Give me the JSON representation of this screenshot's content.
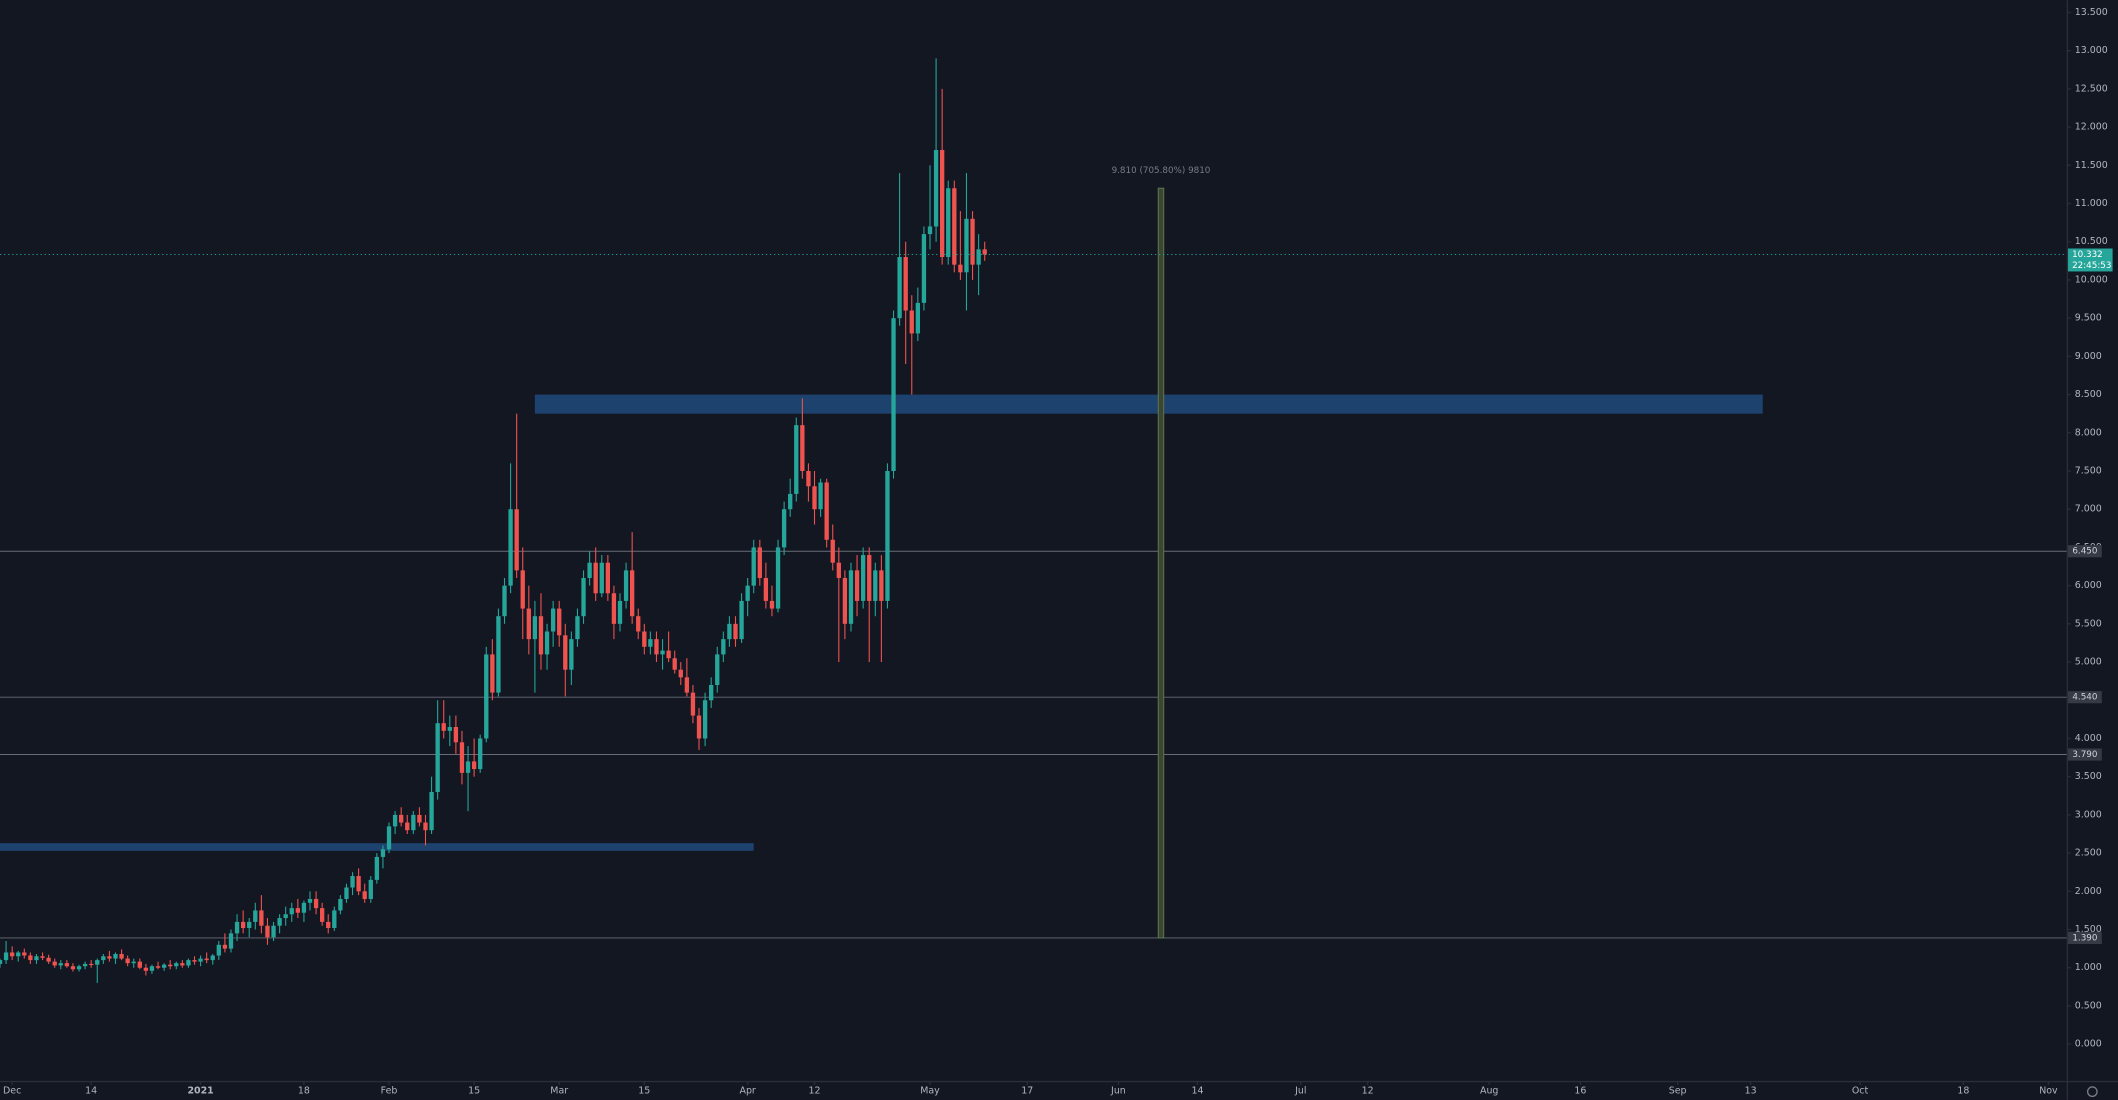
{
  "chart_data": {
    "type": "candlestick",
    "up_color": "#26a69a",
    "down_color": "#ef5350",
    "xlim": [
      "2020-11-29",
      "2021-11-04"
    ],
    "ylim": [
      -0.48,
      13.66
    ],
    "yticks": [
      {
        "value": 0,
        "label": "0.000"
      },
      {
        "value": 0.5,
        "label": "0.500"
      },
      {
        "value": 1,
        "label": "1.000"
      },
      {
        "value": 1.5,
        "label": "1.500"
      },
      {
        "value": 2,
        "label": "2.000"
      },
      {
        "value": 2.5,
        "label": "2.500"
      },
      {
        "value": 3,
        "label": "3.000"
      },
      {
        "value": 3.5,
        "label": "3.500"
      },
      {
        "value": 4,
        "label": "4.000"
      },
      {
        "value": 4.5,
        "label": "4.500"
      },
      {
        "value": 5,
        "label": "5.000"
      },
      {
        "value": 5.5,
        "label": "5.500"
      },
      {
        "value": 6,
        "label": "6.000"
      },
      {
        "value": 6.5,
        "label": "6.500"
      },
      {
        "value": 7,
        "label": "7.000"
      },
      {
        "value": 7.5,
        "label": "7.500"
      },
      {
        "value": 8,
        "label": "8.000"
      },
      {
        "value": 8.5,
        "label": "8.500"
      },
      {
        "value": 9,
        "label": "9.000"
      },
      {
        "value": 9.5,
        "label": "9.500"
      },
      {
        "value": 10,
        "label": "10.000"
      },
      {
        "value": 10.5,
        "label": "10.500"
      },
      {
        "value": 11,
        "label": "11.000"
      },
      {
        "value": 11.5,
        "label": "11.500"
      },
      {
        "value": 12,
        "label": "12.000"
      },
      {
        "value": 12.5,
        "label": "12.500"
      },
      {
        "value": 13,
        "label": "13.000"
      },
      {
        "value": 13.5,
        "label": "13.500"
      }
    ],
    "xticks": [
      {
        "value": "2020-12-01",
        "label": "Dec"
      },
      {
        "value": "2020-12-14",
        "label": "14"
      },
      {
        "value": "2021-01-01",
        "label": "2021"
      },
      {
        "value": "2021-01-18",
        "label": "18"
      },
      {
        "value": "2021-02-01",
        "label": "Feb"
      },
      {
        "value": "2021-02-15",
        "label": "15"
      },
      {
        "value": "2021-03-01",
        "label": "Mar"
      },
      {
        "value": "2021-03-15",
        "label": "15"
      },
      {
        "value": "2021-04-01",
        "label": "Apr"
      },
      {
        "value": "2021-04-12",
        "label": "12"
      },
      {
        "value": "2021-05-01",
        "label": "May"
      },
      {
        "value": "2021-05-17",
        "label": "17"
      },
      {
        "value": "2021-06-01",
        "label": "Jun"
      },
      {
        "value": "2021-06-14",
        "label": "14"
      },
      {
        "value": "2021-07-01",
        "label": "Jul"
      },
      {
        "value": "2021-07-12",
        "label": "12"
      },
      {
        "value": "2021-08-01",
        "label": "Aug"
      },
      {
        "value": "2021-08-16",
        "label": "16"
      },
      {
        "value": "2021-09-01",
        "label": "Sep"
      },
      {
        "value": "2021-09-13",
        "label": "13"
      },
      {
        "value": "2021-10-01",
        "label": "Oct"
      },
      {
        "value": "2021-10-18",
        "label": "18"
      },
      {
        "value": "2021-11-01",
        "label": "Nov"
      }
    ],
    "levels": [
      {
        "value": 6.45,
        "label": "6.450"
      },
      {
        "value": 4.54,
        "label": "4.540"
      },
      {
        "value": 3.79,
        "label": "3.790"
      },
      {
        "value": 1.39,
        "label": "1.390"
      }
    ],
    "current_price": {
      "value": 10.332,
      "label": "10.332",
      "timer": "22:45:53"
    },
    "zones": [
      {
        "from": "2021-02-25",
        "to": "2021-09-15",
        "low": 8.25,
        "high": 8.5
      },
      {
        "from": "2020-11-29",
        "to": "2021-04-02",
        "low": 2.53,
        "high": 2.63
      }
    ],
    "measure": {
      "label": "9.810 (705.80%) 9810",
      "date": "2021-06-08",
      "from": 1.39,
      "to": 11.2
    },
    "x": [
      "2020-11-29",
      "2020-11-30",
      "2020-12-01",
      "2020-12-02",
      "2020-12-03",
      "2020-12-04",
      "2020-12-05",
      "2020-12-06",
      "2020-12-07",
      "2020-12-08",
      "2020-12-09",
      "2020-12-10",
      "2020-12-11",
      "2020-12-12",
      "2020-12-13",
      "2020-12-14",
      "2020-12-15",
      "2020-12-16",
      "2020-12-17",
      "2020-12-18",
      "2020-12-19",
      "2020-12-20",
      "2020-12-21",
      "2020-12-22",
      "2020-12-23",
      "2020-12-24",
      "2020-12-25",
      "2020-12-26",
      "2020-12-27",
      "2020-12-28",
      "2020-12-29",
      "2020-12-30",
      "2020-12-31",
      "2021-01-01",
      "2021-01-02",
      "2021-01-03",
      "2021-01-04",
      "2021-01-05",
      "2021-01-06",
      "2021-01-07",
      "2021-01-08",
      "2021-01-09",
      "2021-01-10",
      "2021-01-11",
      "2021-01-12",
      "2021-01-13",
      "2021-01-14",
      "2021-01-15",
      "2021-01-16",
      "2021-01-17",
      "2021-01-18",
      "2021-01-19",
      "2021-01-20",
      "2021-01-21",
      "2021-01-22",
      "2021-01-23",
      "2021-01-24",
      "2021-01-25",
      "2021-01-26",
      "2021-01-27",
      "2021-01-28",
      "2021-01-29",
      "2021-01-30",
      "2021-01-31",
      "2021-02-01",
      "2021-02-02",
      "2021-02-03",
      "2021-02-04",
      "2021-02-05",
      "2021-02-06",
      "2021-02-07",
      "2021-02-08",
      "2021-02-09",
      "2021-02-10",
      "2021-02-11",
      "2021-02-12",
      "2021-02-13",
      "2021-02-14",
      "2021-02-15",
      "2021-02-16",
      "2021-02-17",
      "2021-02-18",
      "2021-02-19",
      "2021-02-20",
      "2021-02-21",
      "2021-02-22",
      "2021-02-23",
      "2021-02-24",
      "2021-02-25",
      "2021-02-26",
      "2021-02-27",
      "2021-02-28",
      "2021-03-01",
      "2021-03-02",
      "2021-03-03",
      "2021-03-04",
      "2021-03-05",
      "2021-03-06",
      "2021-03-07",
      "2021-03-08",
      "2021-03-09",
      "2021-03-10",
      "2021-03-11",
      "2021-03-12",
      "2021-03-13",
      "2021-03-14",
      "2021-03-15",
      "2021-03-16",
      "2021-03-17",
      "2021-03-18",
      "2021-03-19",
      "2021-03-20",
      "2021-03-21",
      "2021-03-22",
      "2021-03-23",
      "2021-03-24",
      "2021-03-25",
      "2021-03-26",
      "2021-03-27",
      "2021-03-28",
      "2021-03-29",
      "2021-03-30",
      "2021-03-31",
      "2021-04-01",
      "2021-04-02",
      "2021-04-03",
      "2021-04-04",
      "2021-04-05",
      "2021-04-06",
      "2021-04-07",
      "2021-04-08",
      "2021-04-09",
      "2021-04-10",
      "2021-04-11",
      "2021-04-12",
      "2021-04-13",
      "2021-04-14",
      "2021-04-15",
      "2021-04-16",
      "2021-04-17",
      "2021-04-18",
      "2021-04-19",
      "2021-04-20",
      "2021-04-21",
      "2021-04-22",
      "2021-04-23",
      "2021-04-24",
      "2021-04-25",
      "2021-04-26",
      "2021-04-27",
      "2021-04-28",
      "2021-04-29",
      "2021-04-30",
      "2021-05-01",
      "2021-05-02",
      "2021-05-03",
      "2021-05-04",
      "2021-05-05",
      "2021-05-06",
      "2021-05-07",
      "2021-05-08",
      "2021-05-09",
      "2021-05-10"
    ],
    "ohlc": [
      [
        1.05,
        1.12,
        1.0,
        1.1
      ],
      [
        1.1,
        1.35,
        1.05,
        1.2
      ],
      [
        1.2,
        1.28,
        1.1,
        1.15
      ],
      [
        1.15,
        1.22,
        1.08,
        1.2
      ],
      [
        1.2,
        1.25,
        1.12,
        1.16
      ],
      [
        1.16,
        1.2,
        1.05,
        1.1
      ],
      [
        1.1,
        1.18,
        1.05,
        1.15
      ],
      [
        1.15,
        1.2,
        1.1,
        1.13
      ],
      [
        1.13,
        1.17,
        1.05,
        1.08
      ],
      [
        1.08,
        1.12,
        1.0,
        1.03
      ],
      [
        1.03,
        1.1,
        0.98,
        1.06
      ],
      [
        1.06,
        1.1,
        1.0,
        1.02
      ],
      [
        1.02,
        1.06,
        0.95,
        0.98
      ],
      [
        0.98,
        1.04,
        0.95,
        1.02
      ],
      [
        1.02,
        1.08,
        0.98,
        1.05
      ],
      [
        1.05,
        1.1,
        1.0,
        1.04
      ],
      [
        1.04,
        1.12,
        0.8,
        1.1
      ],
      [
        1.1,
        1.18,
        1.05,
        1.15
      ],
      [
        1.15,
        1.22,
        1.08,
        1.12
      ],
      [
        1.12,
        1.2,
        1.05,
        1.18
      ],
      [
        1.18,
        1.24,
        1.1,
        1.12
      ],
      [
        1.12,
        1.16,
        1.02,
        1.06
      ],
      [
        1.06,
        1.12,
        1.0,
        1.08
      ],
      [
        1.08,
        1.12,
        0.98,
        1.0
      ],
      [
        1.0,
        1.05,
        0.9,
        0.96
      ],
      [
        0.96,
        1.04,
        0.92,
        1.02
      ],
      [
        1.02,
        1.08,
        0.98,
        1.0
      ],
      [
        1.0,
        1.06,
        0.96,
        1.04
      ],
      [
        1.04,
        1.1,
        0.98,
        1.02
      ],
      [
        1.02,
        1.08,
        0.98,
        1.06
      ],
      [
        1.06,
        1.1,
        1.0,
        1.03
      ],
      [
        1.03,
        1.12,
        1.0,
        1.1
      ],
      [
        1.1,
        1.15,
        1.04,
        1.08
      ],
      [
        1.08,
        1.16,
        1.02,
        1.12
      ],
      [
        1.12,
        1.2,
        1.06,
        1.1
      ],
      [
        1.1,
        1.18,
        1.04,
        1.16
      ],
      [
        1.16,
        1.35,
        1.1,
        1.3
      ],
      [
        1.3,
        1.45,
        1.2,
        1.25
      ],
      [
        1.25,
        1.5,
        1.2,
        1.45
      ],
      [
        1.45,
        1.7,
        1.35,
        1.6
      ],
      [
        1.6,
        1.75,
        1.45,
        1.52
      ],
      [
        1.52,
        1.65,
        1.4,
        1.6
      ],
      [
        1.6,
        1.85,
        1.5,
        1.75
      ],
      [
        1.75,
        1.95,
        1.45,
        1.55
      ],
      [
        1.55,
        1.65,
        1.3,
        1.4
      ],
      [
        1.4,
        1.6,
        1.35,
        1.55
      ],
      [
        1.55,
        1.7,
        1.45,
        1.65
      ],
      [
        1.65,
        1.8,
        1.55,
        1.7
      ],
      [
        1.7,
        1.85,
        1.6,
        1.78
      ],
      [
        1.78,
        1.9,
        1.65,
        1.72
      ],
      [
        1.72,
        1.88,
        1.6,
        1.85
      ],
      [
        1.85,
        2.0,
        1.75,
        1.9
      ],
      [
        1.9,
        2.0,
        1.7,
        1.78
      ],
      [
        1.78,
        1.85,
        1.55,
        1.6
      ],
      [
        1.6,
        1.7,
        1.45,
        1.52
      ],
      [
        1.52,
        1.8,
        1.48,
        1.75
      ],
      [
        1.75,
        1.95,
        1.7,
        1.9
      ],
      [
        1.9,
        2.1,
        1.85,
        2.05
      ],
      [
        2.05,
        2.25,
        1.95,
        2.2
      ],
      [
        2.2,
        2.3,
        1.95,
        2.0
      ],
      [
        2.0,
        2.1,
        1.85,
        1.9
      ],
      [
        1.9,
        2.2,
        1.85,
        2.15
      ],
      [
        2.15,
        2.5,
        2.1,
        2.45
      ],
      [
        2.45,
        2.6,
        2.3,
        2.55
      ],
      [
        2.55,
        2.9,
        2.5,
        2.85
      ],
      [
        2.85,
        3.05,
        2.75,
        3.0
      ],
      [
        3.0,
        3.1,
        2.85,
        2.9
      ],
      [
        2.9,
        3.0,
        2.75,
        2.8
      ],
      [
        2.8,
        3.05,
        2.75,
        3.0
      ],
      [
        3.0,
        3.1,
        2.85,
        2.9
      ],
      [
        2.9,
        3.0,
        2.6,
        2.8
      ],
      [
        2.8,
        3.5,
        2.75,
        3.3
      ],
      [
        3.3,
        4.5,
        3.2,
        4.2
      ],
      [
        4.2,
        4.5,
        4.0,
        4.1
      ],
      [
        4.1,
        4.3,
        3.9,
        4.15
      ],
      [
        4.15,
        4.3,
        3.8,
        3.95
      ],
      [
        3.95,
        4.1,
        3.4,
        3.55
      ],
      [
        3.55,
        3.9,
        3.05,
        3.7
      ],
      [
        3.7,
        4.0,
        3.5,
        3.6
      ],
      [
        3.6,
        4.05,
        3.55,
        4.0
      ],
      [
        4.0,
        5.2,
        3.95,
        5.1
      ],
      [
        5.1,
        5.3,
        4.5,
        4.6
      ],
      [
        4.6,
        5.7,
        4.55,
        5.6
      ],
      [
        5.6,
        6.1,
        5.5,
        6.0
      ],
      [
        6.0,
        7.6,
        5.9,
        7.0
      ],
      [
        7.0,
        8.25,
        6.1,
        6.2
      ],
      [
        6.2,
        6.5,
        5.3,
        5.7
      ],
      [
        5.7,
        6.0,
        5.1,
        5.3
      ],
      [
        5.3,
        5.8,
        4.6,
        5.6
      ],
      [
        5.6,
        5.9,
        4.9,
        5.1
      ],
      [
        5.1,
        5.5,
        4.9,
        5.4
      ],
      [
        5.4,
        5.8,
        5.2,
        5.7
      ],
      [
        5.7,
        5.8,
        5.2,
        5.35
      ],
      [
        5.35,
        5.5,
        4.55,
        4.9
      ],
      [
        4.9,
        5.4,
        4.7,
        5.3
      ],
      [
        5.3,
        5.7,
        5.2,
        5.6
      ],
      [
        5.6,
        6.2,
        5.5,
        6.1
      ],
      [
        6.1,
        6.45,
        6.0,
        6.3
      ],
      [
        6.3,
        6.5,
        5.8,
        5.9
      ],
      [
        5.9,
        6.4,
        5.85,
        6.3
      ],
      [
        6.3,
        6.4,
        5.8,
        5.9
      ],
      [
        5.9,
        6.0,
        5.3,
        5.5
      ],
      [
        5.5,
        5.9,
        5.4,
        5.8
      ],
      [
        5.8,
        6.3,
        5.7,
        6.2
      ],
      [
        6.2,
        6.7,
        5.5,
        5.6
      ],
      [
        5.6,
        5.7,
        5.3,
        5.4
      ],
      [
        5.4,
        5.5,
        5.1,
        5.2
      ],
      [
        5.2,
        5.4,
        5.1,
        5.3
      ],
      [
        5.3,
        5.4,
        5.0,
        5.1
      ],
      [
        5.1,
        5.3,
        4.9,
        5.15
      ],
      [
        5.15,
        5.4,
        5.0,
        5.05
      ],
      [
        5.05,
        5.15,
        4.85,
        4.9
      ],
      [
        4.9,
        5.0,
        4.7,
        4.8
      ],
      [
        4.8,
        5.05,
        4.55,
        4.6
      ],
      [
        4.6,
        4.7,
        4.2,
        4.3
      ],
      [
        4.3,
        4.4,
        3.85,
        4.0
      ],
      [
        4.0,
        4.6,
        3.9,
        4.5
      ],
      [
        4.5,
        4.8,
        4.4,
        4.7
      ],
      [
        4.7,
        5.2,
        4.6,
        5.1
      ],
      [
        5.1,
        5.4,
        5.0,
        5.3
      ],
      [
        5.3,
        5.6,
        5.2,
        5.5
      ],
      [
        5.5,
        5.6,
        5.2,
        5.3
      ],
      [
        5.3,
        5.9,
        5.25,
        5.8
      ],
      [
        5.8,
        6.1,
        5.6,
        6.0
      ],
      [
        6.0,
        6.6,
        5.9,
        6.5
      ],
      [
        6.5,
        6.6,
        6.0,
        6.1
      ],
      [
        6.1,
        6.3,
        5.7,
        5.8
      ],
      [
        5.8,
        6.0,
        5.6,
        5.7
      ],
      [
        5.7,
        6.6,
        5.65,
        6.5
      ],
      [
        6.5,
        7.1,
        6.4,
        7.0
      ],
      [
        7.0,
        7.4,
        6.9,
        7.2
      ],
      [
        7.2,
        8.2,
        7.1,
        8.1
      ],
      [
        8.1,
        8.45,
        7.4,
        7.5
      ],
      [
        7.5,
        7.6,
        7.1,
        7.3
      ],
      [
        7.3,
        7.5,
        6.8,
        7.0
      ],
      [
        7.0,
        7.4,
        6.9,
        7.35
      ],
      [
        7.35,
        7.4,
        6.5,
        6.6
      ],
      [
        6.6,
        6.8,
        6.2,
        6.3
      ],
      [
        6.3,
        6.5,
        5.0,
        6.1
      ],
      [
        6.1,
        6.2,
        5.3,
        5.5
      ],
      [
        5.5,
        6.3,
        5.4,
        6.2
      ],
      [
        6.2,
        6.4,
        5.6,
        5.8
      ],
      [
        5.8,
        6.5,
        5.7,
        6.4
      ],
      [
        6.4,
        6.5,
        5.0,
        5.8
      ],
      [
        5.8,
        6.3,
        5.6,
        6.2
      ],
      [
        6.2,
        6.4,
        5.0,
        5.8
      ],
      [
        5.8,
        7.6,
        5.7,
        7.5
      ],
      [
        7.5,
        9.6,
        7.4,
        9.5
      ],
      [
        9.5,
        11.4,
        9.4,
        10.3
      ],
      [
        10.3,
        10.5,
        8.9,
        9.6
      ],
      [
        9.6,
        9.8,
        8.5,
        9.3
      ],
      [
        9.3,
        9.9,
        9.2,
        9.7
      ],
      [
        9.7,
        10.7,
        9.6,
        10.6
      ],
      [
        10.6,
        11.5,
        10.4,
        10.7
      ],
      [
        10.7,
        12.9,
        10.5,
        11.7
      ],
      [
        11.7,
        12.5,
        10.2,
        10.3
      ],
      [
        10.3,
        11.3,
        10.2,
        11.2
      ],
      [
        11.2,
        11.3,
        10.1,
        10.2
      ],
      [
        10.2,
        10.9,
        10.0,
        10.1
      ],
      [
        10.1,
        11.4,
        9.6,
        10.8
      ],
      [
        10.8,
        10.9,
        10.0,
        10.2
      ],
      [
        10.2,
        10.6,
        9.8,
        10.4
      ],
      [
        10.4,
        10.5,
        10.25,
        10.332
      ]
    ]
  }
}
